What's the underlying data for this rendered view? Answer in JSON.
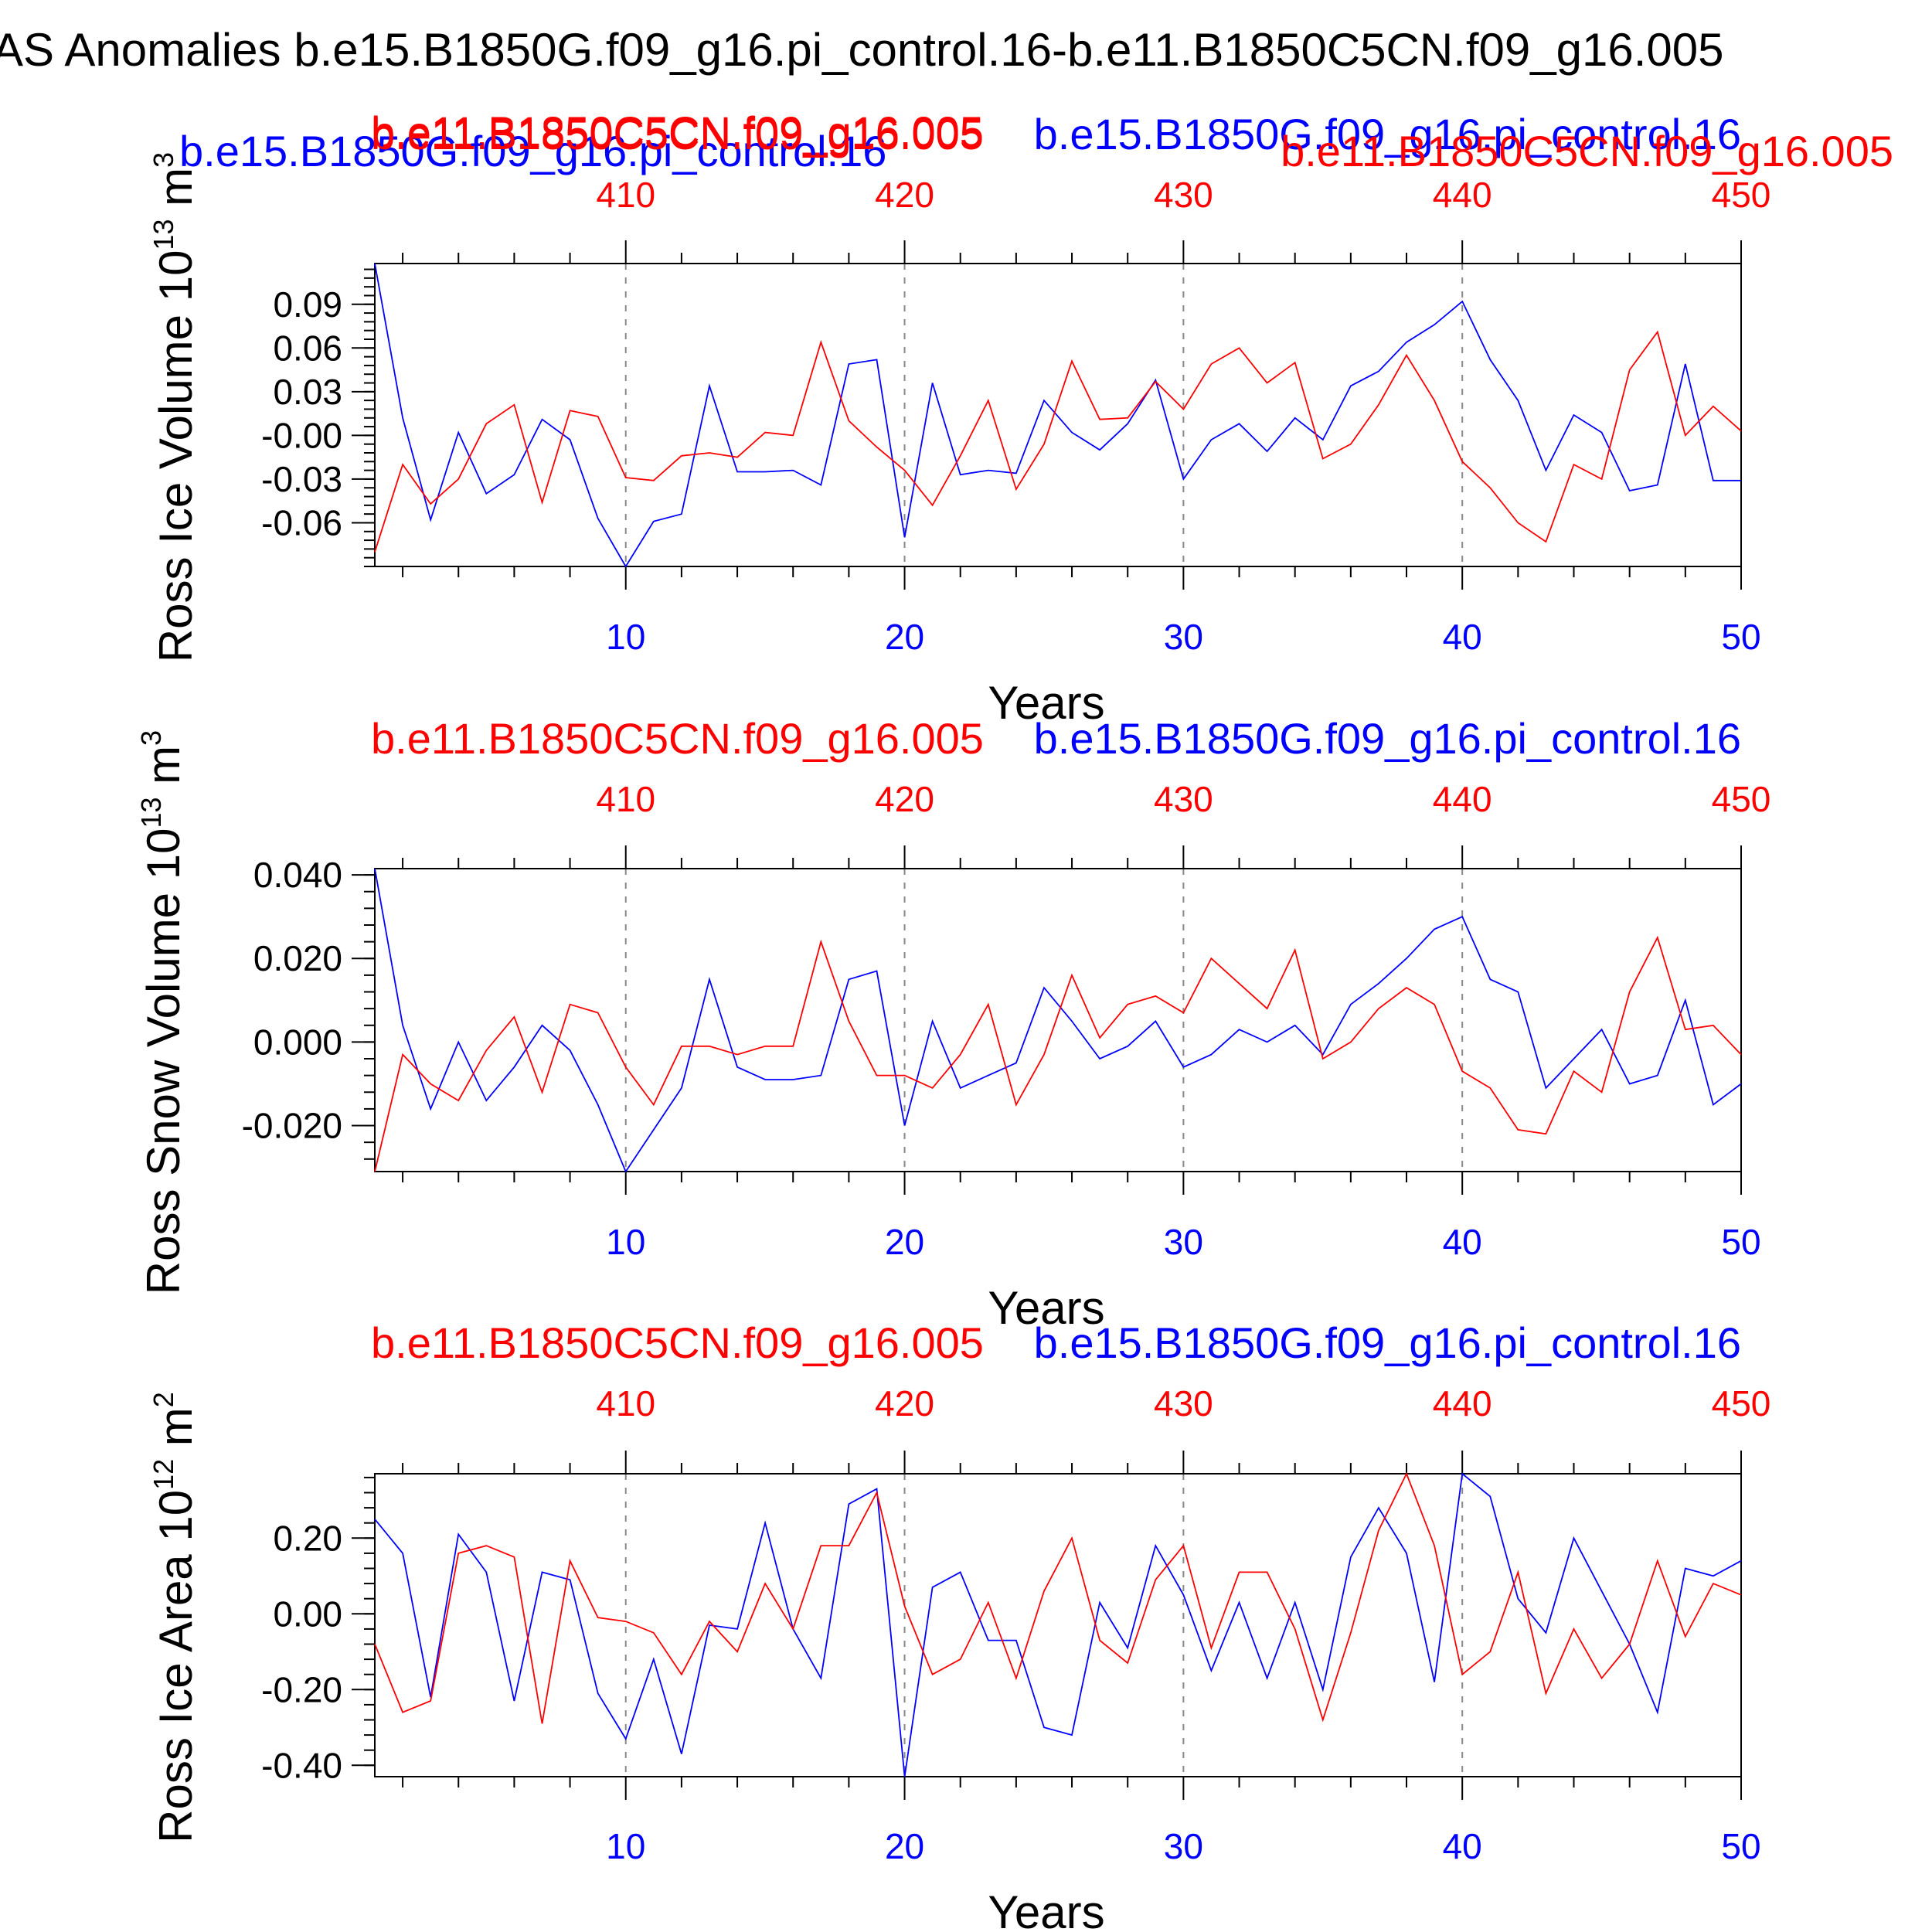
{
  "page_title": "AS Anomalies b.e15.B1850G.f09_g16.pi_control.16-b.e11.B1850C5CN.f09_g16.005",
  "colors": {
    "red": "#ff0000",
    "blue": "#0000ff",
    "black": "#000000",
    "grid": "#888888"
  },
  "legend_top": {
    "red": "b.e11.B1850C5CN.f09_g16.005",
    "blue": "b.e15.B1850G.f09_g16.pi_control.16"
  },
  "chart_data": [
    {
      "type": "line",
      "ylabel": "Ross Ice Volume 10",
      "ylabel_exp": "13",
      "ylabel_unit": " m",
      "ylabel_unit_exp": "3",
      "xlabel": "Years",
      "ylim": [
        -0.09,
        0.118
      ],
      "yticks": [
        -0.06,
        -0.03,
        0.0,
        0.03,
        0.06,
        0.09
      ],
      "ytick_labels": [
        "-0.06",
        "-0.03",
        "-0.00",
        "0.03",
        "0.06",
        "0.09"
      ],
      "title_red": "b.e11.B1850C5CN.f09_g16.005",
      "title_blue": "b.e15.B1850G.f09_g16.pi_control.16",
      "series": [
        {
          "name": "b.e15.B1850G.f09_g16.pi_control.16",
          "color": "blue",
          "values": [
            0.118,
            0.012,
            -0.058,
            0.002,
            -0.04,
            -0.027,
            0.011,
            -0.003,
            -0.057,
            -0.09,
            -0.059,
            -0.054,
            0.034,
            -0.025,
            -0.025,
            -0.024,
            -0.034,
            0.049,
            0.052,
            -0.07,
            0.036,
            -0.027,
            -0.024,
            -0.026,
            0.024,
            0.002,
            -0.01,
            0.008,
            0.038,
            -0.03,
            -0.003,
            0.008,
            -0.011,
            0.012,
            -0.003,
            0.034,
            0.044,
            0.064,
            0.076,
            0.092,
            0.052,
            0.024,
            -0.024,
            0.014,
            0.002,
            -0.038,
            -0.034,
            0.049,
            -0.031,
            -0.031
          ]
        },
        {
          "name": "b.e11.B1850C5CN.f09_g16.005",
          "color": "red",
          "values": [
            -0.08,
            -0.02,
            -0.047,
            -0.03,
            0.008,
            0.021,
            -0.046,
            0.017,
            0.013,
            -0.029,
            -0.031,
            -0.014,
            -0.012,
            -0.015,
            0.002,
            0.0,
            0.064,
            0.01,
            -0.008,
            -0.024,
            -0.048,
            -0.014,
            0.024,
            -0.037,
            -0.006,
            0.051,
            0.011,
            0.012,
            0.037,
            0.018,
            0.049,
            0.06,
            0.036,
            0.05,
            -0.016,
            -0.006,
            0.021,
            0.055,
            0.024,
            -0.018,
            -0.036,
            -0.06,
            -0.073,
            -0.02,
            -0.03,
            0.045,
            0.071,
            0.0,
            0.02,
            0.003
          ]
        }
      ]
    },
    {
      "type": "line",
      "ylabel": "Ross Snow Volume 10",
      "ylabel_exp": "13",
      "ylabel_unit": " m",
      "ylabel_unit_exp": "3",
      "xlabel": "Years",
      "ylim": [
        -0.031,
        0.0415
      ],
      "yticks": [
        -0.02,
        0.0,
        0.02,
        0.04
      ],
      "ytick_labels": [
        "-0.020",
        "0.000",
        "0.020",
        "0.040"
      ],
      "title_red": "b.e11.B1850C5CN.f09_g16.005",
      "title_blue": "b.e15.B1850G.f09_g16.pi_control.16",
      "series": [
        {
          "name": "b.e15.B1850G.f09_g16.pi_control.16",
          "color": "blue",
          "values": [
            0.0415,
            0.004,
            -0.016,
            0.0,
            -0.014,
            -0.006,
            0.004,
            -0.002,
            -0.015,
            -0.031,
            -0.021,
            -0.011,
            0.015,
            -0.006,
            -0.009,
            -0.009,
            -0.008,
            0.015,
            0.017,
            -0.02,
            0.005,
            -0.011,
            -0.008,
            -0.005,
            0.013,
            0.005,
            -0.004,
            -0.001,
            0.005,
            -0.006,
            -0.003,
            0.003,
            0.0,
            0.004,
            -0.003,
            0.009,
            0.014,
            0.02,
            0.027,
            0.03,
            0.015,
            0.012,
            -0.011,
            -0.004,
            0.003,
            -0.01,
            -0.008,
            0.01,
            -0.015,
            -0.01
          ]
        },
        {
          "name": "b.e11.B1850C5CN.f09_g16.005",
          "color": "red",
          "values": [
            -0.031,
            -0.003,
            -0.01,
            -0.014,
            -0.002,
            0.006,
            -0.012,
            0.009,
            0.007,
            -0.006,
            -0.015,
            -0.001,
            -0.001,
            -0.003,
            -0.001,
            -0.001,
            0.024,
            0.005,
            -0.008,
            -0.008,
            -0.011,
            -0.003,
            0.009,
            -0.015,
            -0.003,
            0.016,
            0.001,
            0.009,
            0.011,
            0.007,
            0.02,
            0.014,
            0.008,
            0.022,
            -0.004,
            0.0,
            0.008,
            0.013,
            0.009,
            -0.007,
            -0.011,
            -0.021,
            -0.022,
            -0.007,
            -0.012,
            0.012,
            0.025,
            0.003,
            0.004,
            -0.003
          ]
        }
      ]
    },
    {
      "type": "line",
      "ylabel": "Ross Ice Area 10",
      "ylabel_exp": "12",
      "ylabel_unit": " m",
      "ylabel_unit_exp": "2",
      "xlabel": "Years",
      "ylim": [
        -0.43,
        0.37
      ],
      "yticks": [
        -0.4,
        -0.2,
        0.0,
        0.2
      ],
      "ytick_labels": [
        "-0.40",
        "-0.20",
        "0.00",
        "0.20"
      ],
      "title_red": "b.e11.B1850C5CN.f09_g16.005",
      "title_blue": "b.e15.B1850G.f09_g16.pi_control.16",
      "series": [
        {
          "name": "b.e15.B1850G.f09_g16.pi_control.16",
          "color": "blue",
          "values": [
            0.25,
            0.16,
            -0.22,
            0.21,
            0.11,
            -0.23,
            0.11,
            0.09,
            -0.21,
            -0.33,
            -0.12,
            -0.37,
            -0.03,
            -0.04,
            0.24,
            -0.04,
            -0.17,
            0.29,
            0.33,
            -0.43,
            0.07,
            0.11,
            -0.07,
            -0.07,
            -0.3,
            -0.32,
            0.03,
            -0.09,
            0.18,
            0.05,
            -0.15,
            0.03,
            -0.17,
            0.03,
            -0.2,
            0.15,
            0.28,
            0.16,
            -0.18,
            0.37,
            0.31,
            0.04,
            -0.05,
            0.2,
            0.06,
            -0.08,
            -0.26,
            0.12,
            0.1,
            0.14
          ]
        },
        {
          "name": "b.e11.B1850C5CN.f09_g16.005",
          "color": "red",
          "values": [
            -0.08,
            -0.26,
            -0.23,
            0.16,
            0.18,
            0.15,
            -0.29,
            0.14,
            -0.01,
            -0.02,
            -0.05,
            -0.16,
            -0.02,
            -0.1,
            0.08,
            -0.04,
            0.18,
            0.18,
            0.32,
            0.02,
            -0.16,
            -0.12,
            0.03,
            -0.17,
            0.06,
            0.2,
            -0.07,
            -0.13,
            0.09,
            0.18,
            -0.09,
            0.11,
            0.11,
            -0.04,
            -0.28,
            -0.05,
            0.22,
            0.37,
            0.18,
            -0.16,
            -0.1,
            0.11,
            -0.21,
            -0.04,
            -0.17,
            -0.08,
            0.14,
            -0.06,
            0.08,
            0.05
          ]
        }
      ]
    }
  ],
  "x_axis": {
    "xlim": [
      1,
      50
    ],
    "bottom_ticks": [
      10,
      20,
      30,
      40,
      50
    ],
    "bottom_labels": [
      "10",
      "20",
      "30",
      "40",
      "50"
    ],
    "top_labels": [
      "410",
      "420",
      "430",
      "440",
      "450"
    ],
    "gridlines_at": [
      10,
      20,
      30,
      40
    ]
  }
}
